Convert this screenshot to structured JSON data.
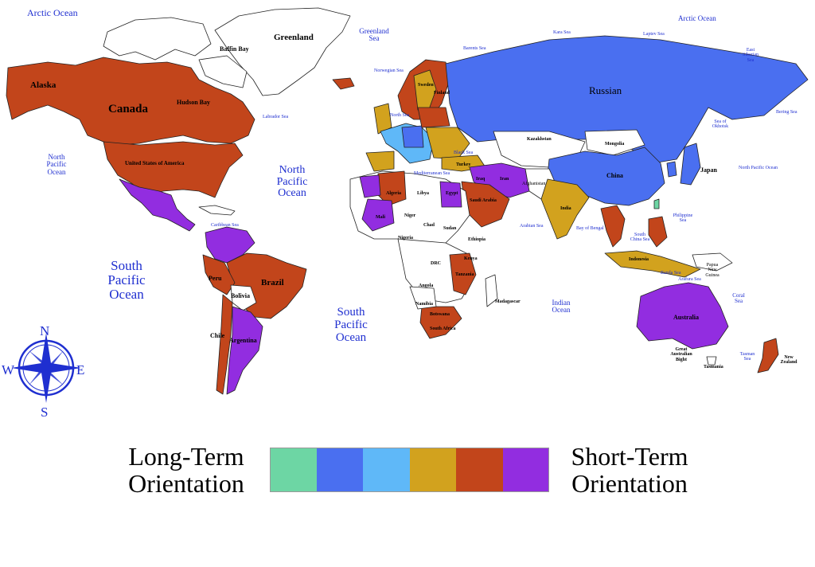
{
  "colors": {
    "teal": "#6dd6a4",
    "royal_blue": "#4a6ff0",
    "light_blue": "#5fb8f8",
    "gold": "#d2a21e",
    "rust": "#c2451b",
    "purple": "#922de0",
    "ocean_text": "#1f2fd0",
    "border": "#222222"
  },
  "oceans": {
    "arctic_left": "Arctic Ocean",
    "arctic_right": "Arctic Ocean",
    "north_pacific_left": "North Pacific Ocean",
    "north_pacific_right": "North Pacific Ocean",
    "north_atlantic": "North Pacific Ocean",
    "south_pacific": "South Pacific Ocean",
    "south_atlantic": "South Pacific Ocean",
    "indian": "Indian Ocean",
    "greenland_sea": "Greenland Sea",
    "norwegian_sea": "Norwegian Sea",
    "barents_sea": "Barents Sea",
    "kara_sea": "Kara Sea",
    "laptev_sea": "Laptev Sea",
    "east_siberian_sea": "East Siberian Sea",
    "bering_sea": "Bering Sea",
    "labrador_sea": "Labrador Sea",
    "sea_of_okhotsk": "Sea of Okhotsk",
    "coral_sea": "Coral Sea",
    "tasman_sea": "Tasman Sea",
    "black_sea": "Black Sea",
    "caribbean_sea": "Caribbean Sea",
    "arabian_sea": "Arabian Sea",
    "bay_of_bengal": "Bay of Bengal",
    "philippine_sea": "Philippine Sea",
    "south_china_sea": "South China Sea",
    "banda_sea": "Banda Sea",
    "arafura_sea": "Arafura Sea",
    "mediterranean_sea": "Mediterranean Sea",
    "north_sea": "North Sea",
    "baffin_bay": "Baffin Bay",
    "hudson_bay": "Hudson Bay",
    "great_australian_bight": "Great Australian Bight"
  },
  "countries": {
    "greenland": "Greenland",
    "alaska": "Alaska",
    "canada": "Canada",
    "usa": "United States of America",
    "russian": "Russian",
    "china": "China",
    "japan": "Japan",
    "kazakhstan": "Kazakhstan",
    "mongolia": "Mongolia",
    "india": "India",
    "iran": "Iran",
    "iraq": "Iraq",
    "saudi_arabia": "Saudi Arabia",
    "turkey": "Turkey",
    "egypt": "Egypt",
    "libya": "Libya",
    "algeria": "Algeria",
    "niger": "Niger",
    "mali": "Mali",
    "chad": "Chad",
    "sudan": "Sudan",
    "ethiopia": "Ethiopia",
    "nigeria": "Nigeria",
    "drc": "DRC",
    "kenya": "Kenya",
    "tanzania": "Tanzania",
    "angola": "Angola",
    "namibia": "Namibia",
    "botswana": "Botswana",
    "south_africa": "South Africa",
    "madagascar": "Madagascar",
    "brazil": "Brazil",
    "peru": "Peru",
    "bolivia": "Bolivia",
    "chile": "Chile",
    "argentina": "Argentina",
    "sweden": "Sweden",
    "finland": "Finland",
    "indonesia": "Indonesia",
    "australia": "Australia",
    "new_zealand": "New Zealand",
    "tasmania": "Tasmania",
    "papua_new_guinea": "Papua New Guinea",
    "afghanistan": "Afghanistan"
  },
  "compass": {
    "n": "N",
    "s": "S",
    "e": "E",
    "w": "W"
  },
  "legend": {
    "left_line1": "Long-Term",
    "left_line2": "Orientation",
    "right_line1": "Short-Term",
    "right_line2": "Orientation",
    "swatches": [
      "teal",
      "royal_blue",
      "light_blue",
      "gold",
      "rust",
      "purple"
    ]
  }
}
